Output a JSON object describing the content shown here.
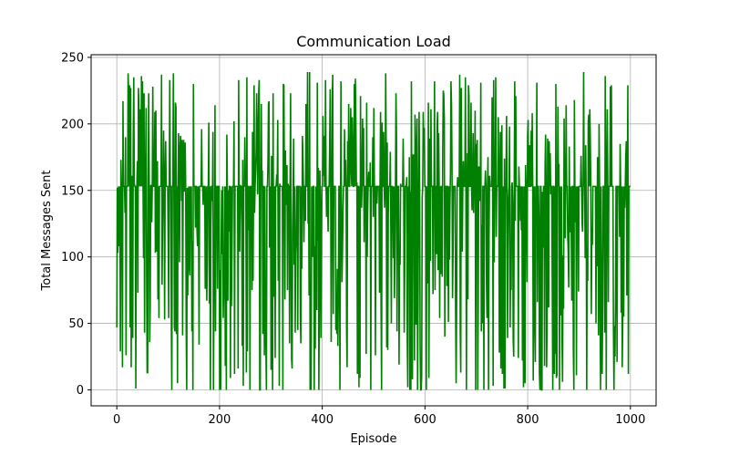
{
  "chart_data": {
    "type": "line",
    "title": "Communication Load",
    "xlabel": "Episode",
    "ylabel": "Total Messages Sent",
    "xlim": [
      -50,
      1050
    ],
    "ylim": [
      -12,
      252
    ],
    "xticks": [
      0,
      200,
      400,
      600,
      800,
      1000
    ],
    "yticks": [
      0,
      50,
      100,
      150,
      200,
      250
    ],
    "grid": true,
    "legend": "none",
    "series": [
      {
        "color": "#008000",
        "x_start": 0,
        "x_end": 1000,
        "points": 1000,
        "baseline": 153,
        "min": 0,
        "max": 240
      }
    ]
  }
}
